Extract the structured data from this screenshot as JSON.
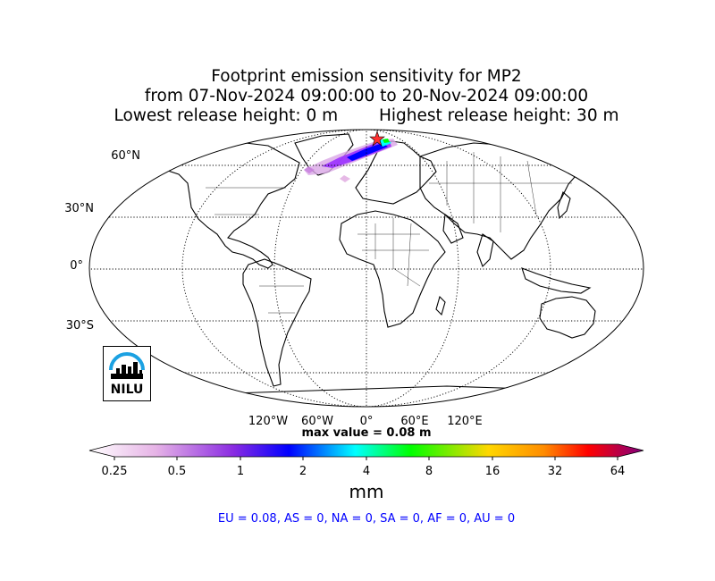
{
  "header": {
    "title_line1": "Footprint emission sensitivity for MP2",
    "title_line2": "from 07-Nov-2024 09:00:00 to 20-Nov-2024 09:00:00",
    "lowest_release": "Lowest release height: 0 m",
    "highest_release": "Highest release height: 30 m"
  },
  "map": {
    "projection": "Robinson",
    "lat_labels": [
      "60°N",
      "30°N",
      "0°",
      "30°S"
    ],
    "lon_labels": [
      "120°W",
      "60°W",
      "0°",
      "60°E",
      "120°E"
    ],
    "max_value": "max value = 0.08 m",
    "plume_region": "North Atlantic / Scandinavia"
  },
  "colorbar": {
    "ticks": [
      "0.25",
      "0.5",
      "1",
      "2",
      "4",
      "8",
      "16",
      "32",
      "64"
    ],
    "unit": "mm",
    "colors": [
      "#ffffff",
      "#e0a8e0",
      "#8a2be2",
      "#0000ff",
      "#00ffff",
      "#00ff00",
      "#ffd700",
      "#ff8c00",
      "#ff0000",
      "#800080"
    ]
  },
  "stats": {
    "line": "EU = 0.08,  AS = 0,  NA = 0,  SA = 0,  AF = 0,  AU = 0"
  },
  "logo": {
    "text": "NILU",
    "color": "#1ba1e2"
  }
}
